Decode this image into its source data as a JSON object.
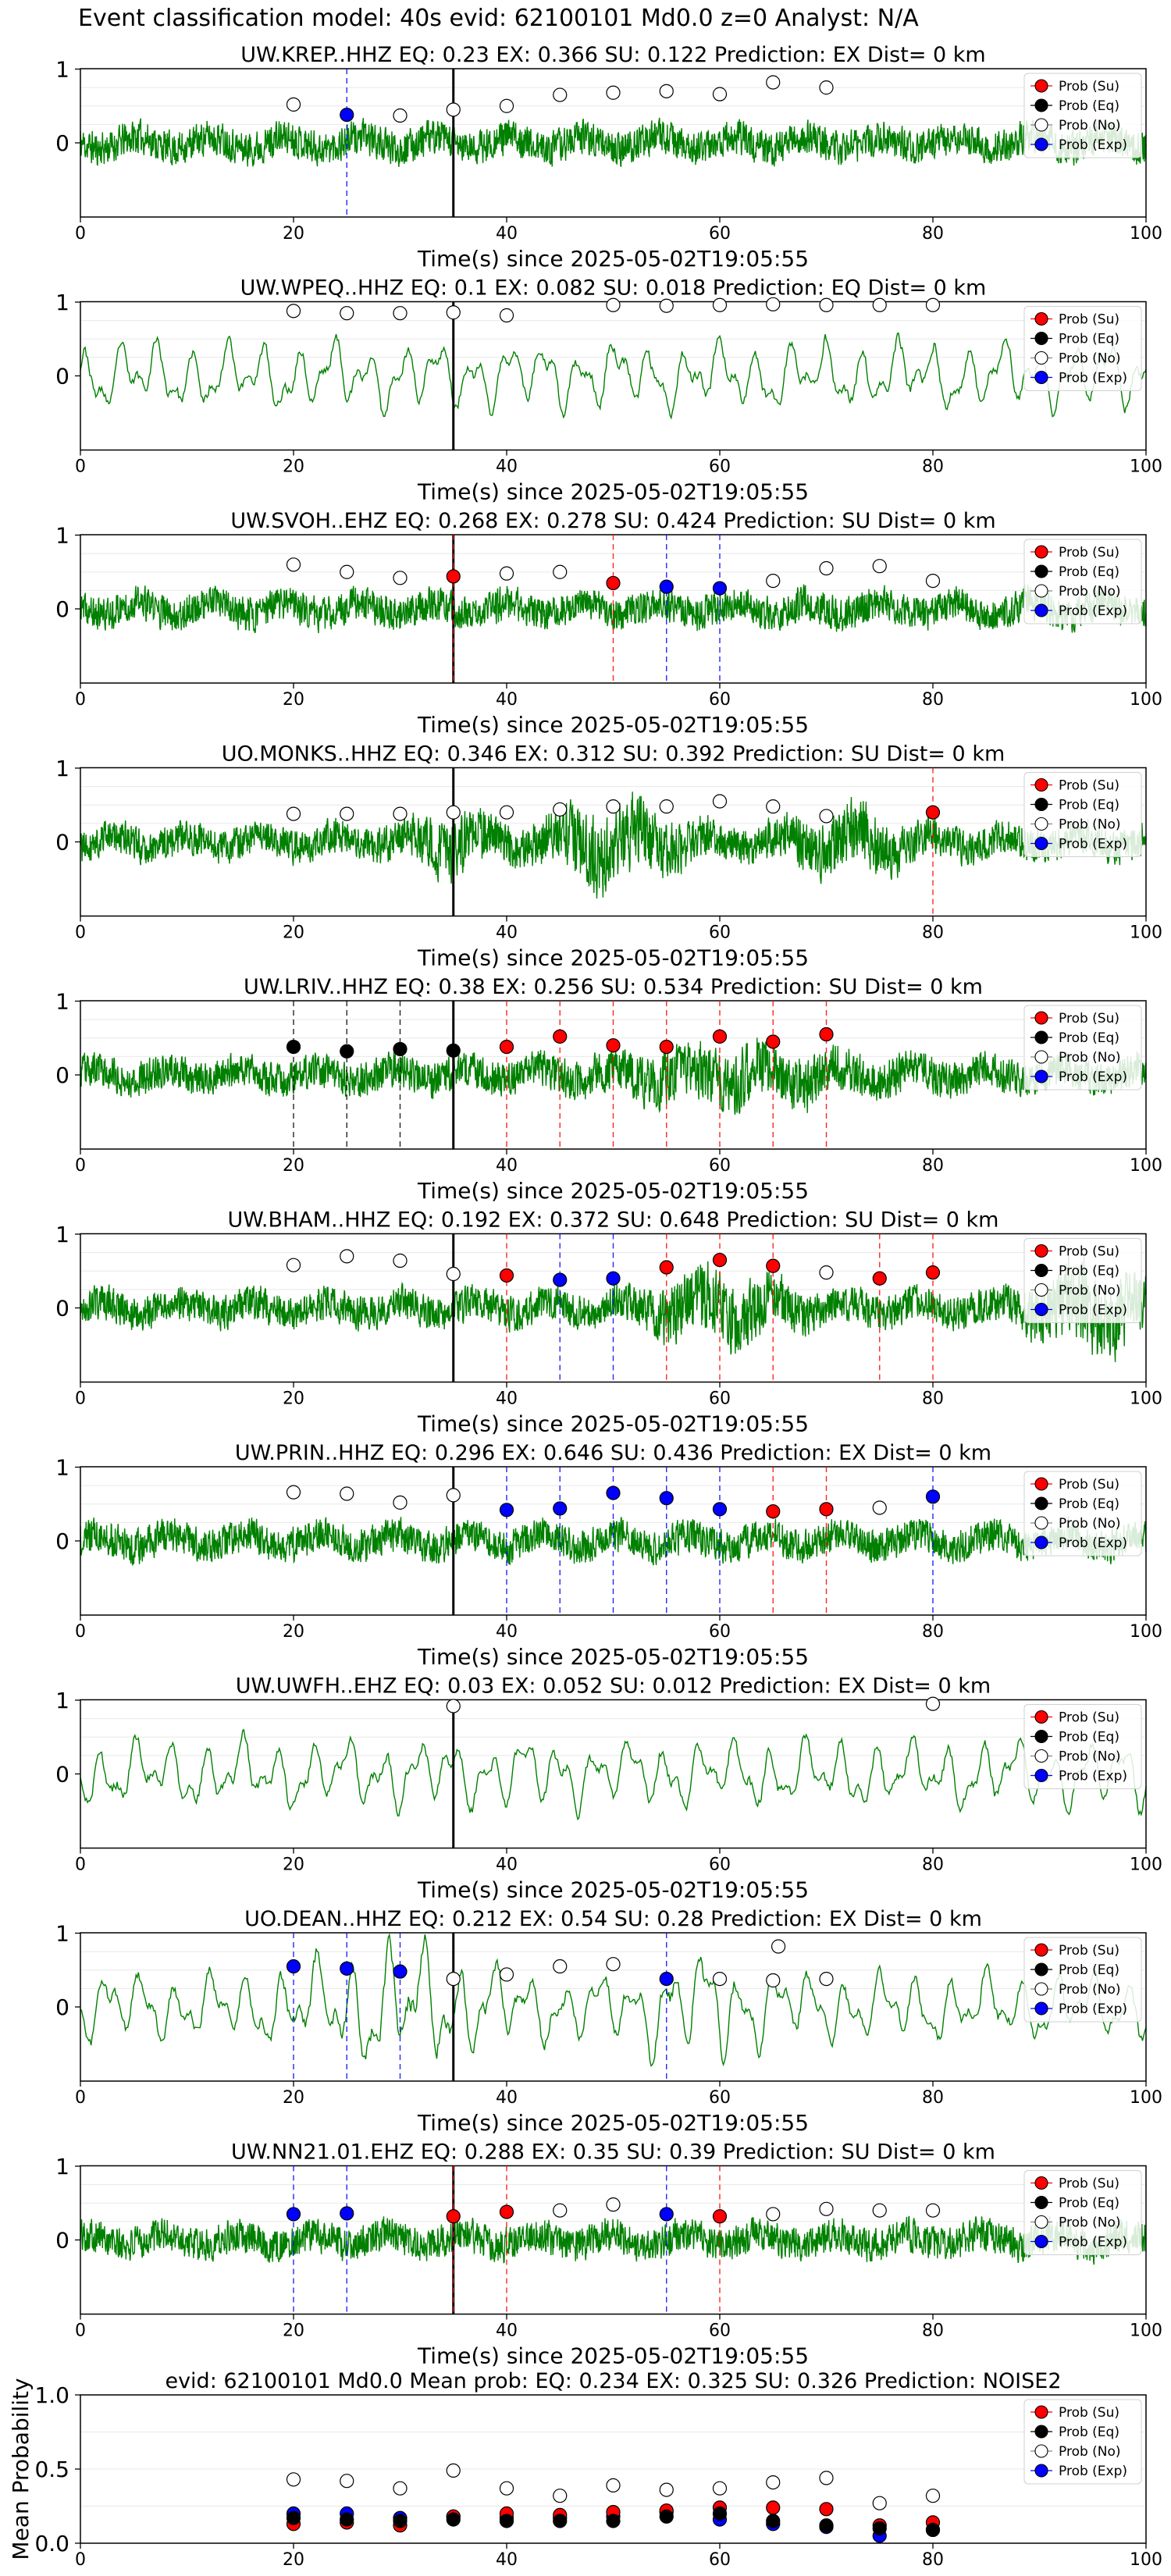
{
  "figure": {
    "suptitle": "Event classification model: 40s evid: 62100101 Md0.0 z=0 Analyst: N/A",
    "xlabel": "Time(s) since 2025-05-02T19:05:55",
    "legend": [
      "Prob (Su)",
      "Prob (Eq)",
      "Prob (No)",
      "Prob (Exp)"
    ],
    "colors": {
      "Su": "#ff0000",
      "Eq": "#000000",
      "No": "#ffffff",
      "Exp": "#0000ff",
      "waveform": "#008000",
      "su_line": "#ff0000",
      "exp_line": "#0000ff",
      "eq_line": "#000000",
      "no_line": "#aaaaaa"
    }
  },
  "chart_data": [
    {
      "type": "scatter",
      "title": "UW.KREP..HHZ   EQ: 0.23  EX: 0.366  SU: 0.122   Prediction: EX    Dist= 0 km",
      "xlim": [
        0,
        100
      ],
      "xticks": [
        0,
        20,
        40,
        60,
        80,
        100
      ],
      "yticks": [
        0,
        1
      ],
      "waveform": "noisy",
      "seed": 11,
      "points": [
        [
          20,
          0.52,
          "No"
        ],
        [
          25,
          0.38,
          "Exp"
        ],
        [
          30,
          0.37,
          "No"
        ],
        [
          35,
          0.45,
          "No"
        ],
        [
          40,
          0.5,
          "No"
        ],
        [
          45,
          0.65,
          "No"
        ],
        [
          50,
          0.68,
          "No"
        ],
        [
          55,
          0.7,
          "No"
        ],
        [
          60,
          0.66,
          "No"
        ],
        [
          65,
          0.82,
          "No"
        ],
        [
          70,
          0.75,
          "No"
        ]
      ]
    },
    {
      "type": "scatter",
      "title": "UW.WPEQ..HHZ   EQ: 0.1  EX: 0.082  SU: 0.018   Prediction: EQ    Dist= 0 km",
      "xlim": [
        0,
        100
      ],
      "xticks": [
        0,
        20,
        40,
        60,
        80,
        100
      ],
      "yticks": [
        0,
        1
      ],
      "waveform": "smooth",
      "seed": 23,
      "points": [
        [
          20,
          0.88,
          "No"
        ],
        [
          25,
          0.85,
          "No"
        ],
        [
          30,
          0.85,
          "No"
        ],
        [
          35,
          0.86,
          "No"
        ],
        [
          40,
          0.82,
          "No"
        ],
        [
          50,
          0.96,
          "No"
        ],
        [
          55,
          0.95,
          "No"
        ],
        [
          60,
          0.96,
          "No"
        ],
        [
          65,
          0.97,
          "No"
        ],
        [
          70,
          0.96,
          "No"
        ],
        [
          75,
          0.96,
          "No"
        ],
        [
          80,
          0.96,
          "No"
        ]
      ]
    },
    {
      "type": "scatter",
      "title": "UW.SVOH..EHZ   EQ: 0.268  EX: 0.278  SU: 0.424   Prediction: SU    Dist= 0 km",
      "xlim": [
        0,
        100
      ],
      "xticks": [
        0,
        20,
        40,
        60,
        80,
        100
      ],
      "yticks": [
        0,
        1
      ],
      "waveform": "noisy",
      "seed": 37,
      "points": [
        [
          20,
          0.6,
          "No"
        ],
        [
          25,
          0.5,
          "No"
        ],
        [
          30,
          0.42,
          "No"
        ],
        [
          35,
          0.44,
          "Su"
        ],
        [
          40,
          0.48,
          "No"
        ],
        [
          45,
          0.5,
          "No"
        ],
        [
          50,
          0.35,
          "Su"
        ],
        [
          55,
          0.3,
          "Exp"
        ],
        [
          60,
          0.28,
          "Exp"
        ],
        [
          65,
          0.38,
          "No"
        ],
        [
          70,
          0.55,
          "No"
        ],
        [
          75,
          0.58,
          "No"
        ],
        [
          80,
          0.38,
          "No"
        ]
      ]
    },
    {
      "type": "scatter",
      "title": "UO.MONKS..HHZ   EQ: 0.346  EX: 0.312  SU: 0.392   Prediction: SU    Dist= 0 km",
      "xlim": [
        0,
        100
      ],
      "xticks": [
        0,
        20,
        40,
        60,
        80,
        100
      ],
      "yticks": [
        0,
        1
      ],
      "waveform": "noisy",
      "seed": 41,
      "points": [
        [
          20,
          0.38,
          "No"
        ],
        [
          25,
          0.38,
          "No"
        ],
        [
          30,
          0.38,
          "No"
        ],
        [
          35,
          0.4,
          "No"
        ],
        [
          40,
          0.4,
          "No"
        ],
        [
          45,
          0.44,
          "No"
        ],
        [
          50,
          0.48,
          "No"
        ],
        [
          55,
          0.48,
          "No"
        ],
        [
          60,
          0.55,
          "No"
        ],
        [
          65,
          0.48,
          "No"
        ],
        [
          70,
          0.35,
          "No"
        ],
        [
          80,
          0.4,
          "Su"
        ]
      ]
    },
    {
      "type": "scatter",
      "title": "UW.LRIV..HHZ   EQ: 0.38  EX: 0.256  SU: 0.534   Prediction: SU    Dist= 0 km",
      "xlim": [
        0,
        100
      ],
      "xticks": [
        0,
        20,
        40,
        60,
        80,
        100
      ],
      "yticks": [
        0,
        1
      ],
      "waveform": "noisy",
      "seed": 53,
      "points": [
        [
          20,
          0.38,
          "Eq"
        ],
        [
          25,
          0.32,
          "Eq"
        ],
        [
          30,
          0.35,
          "Eq"
        ],
        [
          35,
          0.33,
          "Eq"
        ],
        [
          40,
          0.38,
          "Su"
        ],
        [
          45,
          0.52,
          "Su"
        ],
        [
          50,
          0.4,
          "Su"
        ],
        [
          55,
          0.38,
          "Su"
        ],
        [
          60,
          0.52,
          "Su"
        ],
        [
          65,
          0.45,
          "Su"
        ],
        [
          70,
          0.55,
          "Su"
        ]
      ]
    },
    {
      "type": "scatter",
      "title": "UW.BHAM..HHZ   EQ: 0.192  EX: 0.372  SU: 0.648   Prediction: SU    Dist= 0 km",
      "xlim": [
        0,
        100
      ],
      "xticks": [
        0,
        20,
        40,
        60,
        80,
        100
      ],
      "yticks": [
        0,
        1
      ],
      "waveform": "noisy",
      "seed": 67,
      "points": [
        [
          20,
          0.58,
          "No"
        ],
        [
          25,
          0.7,
          "No"
        ],
        [
          30,
          0.64,
          "No"
        ],
        [
          35,
          0.46,
          "No"
        ],
        [
          40,
          0.44,
          "Su"
        ],
        [
          45,
          0.38,
          "Exp"
        ],
        [
          50,
          0.4,
          "Exp"
        ],
        [
          55,
          0.55,
          "Su"
        ],
        [
          60,
          0.65,
          "Su"
        ],
        [
          65,
          0.57,
          "Su"
        ],
        [
          70,
          0.48,
          "No"
        ],
        [
          75,
          0.4,
          "Su"
        ],
        [
          80,
          0.48,
          "Su"
        ]
      ]
    },
    {
      "type": "scatter",
      "title": "UW.PRIN..HHZ   EQ: 0.296  EX: 0.646  SU: 0.436   Prediction: EX    Dist= 0 km",
      "xlim": [
        0,
        100
      ],
      "xticks": [
        0,
        20,
        40,
        60,
        80,
        100
      ],
      "yticks": [
        0,
        1
      ],
      "waveform": "noisy",
      "seed": 79,
      "points": [
        [
          20,
          0.66,
          "No"
        ],
        [
          25,
          0.64,
          "No"
        ],
        [
          30,
          0.52,
          "No"
        ],
        [
          35,
          0.62,
          "No"
        ],
        [
          40,
          0.42,
          "Exp"
        ],
        [
          45,
          0.44,
          "Exp"
        ],
        [
          50,
          0.65,
          "Exp"
        ],
        [
          55,
          0.58,
          "Exp"
        ],
        [
          60,
          0.43,
          "Exp"
        ],
        [
          65,
          0.4,
          "Su"
        ],
        [
          70,
          0.43,
          "Su"
        ],
        [
          75,
          0.45,
          "No"
        ],
        [
          80,
          0.6,
          "Exp"
        ]
      ]
    },
    {
      "type": "scatter",
      "title": "UW.UWFH..EHZ   EQ: 0.03  EX: 0.052  SU: 0.012   Prediction: EX    Dist= 0 km",
      "xlim": [
        0,
        100
      ],
      "xticks": [
        0,
        20,
        40,
        60,
        80,
        100
      ],
      "yticks": [
        0,
        1
      ],
      "waveform": "smooth",
      "seed": 83,
      "points": [
        [
          35,
          0.92,
          "No"
        ],
        [
          80,
          0.95,
          "No"
        ]
      ]
    },
    {
      "type": "scatter",
      "title": "UO.DEAN..HHZ   EQ: 0.212  EX: 0.54  SU: 0.28   Prediction: EX    Dist= 0 km",
      "xlim": [
        0,
        100
      ],
      "xticks": [
        0,
        20,
        40,
        60,
        80,
        100
      ],
      "yticks": [
        0,
        1
      ],
      "waveform": "smooth",
      "seed": 97,
      "points": [
        [
          20,
          0.55,
          "Exp"
        ],
        [
          25,
          0.52,
          "Exp"
        ],
        [
          30,
          0.48,
          "Exp"
        ],
        [
          35,
          0.38,
          "No"
        ],
        [
          40,
          0.44,
          "No"
        ],
        [
          45,
          0.55,
          "No"
        ],
        [
          50,
          0.58,
          "No"
        ],
        [
          55,
          0.38,
          "Exp"
        ],
        [
          60,
          0.38,
          "No"
        ],
        [
          65,
          0.36,
          "No"
        ],
        [
          65.5,
          0.82,
          "No"
        ],
        [
          70,
          0.38,
          "No"
        ]
      ]
    },
    {
      "type": "scatter",
      "title": "UW.NN21.01.EHZ   EQ: 0.288  EX: 0.35  SU: 0.39   Prediction: SU    Dist= 0 km",
      "xlim": [
        0,
        100
      ],
      "xticks": [
        0,
        20,
        40,
        60,
        80,
        100
      ],
      "yticks": [
        0,
        1
      ],
      "waveform": "noisy",
      "seed": 101,
      "points": [
        [
          20,
          0.35,
          "Exp"
        ],
        [
          25,
          0.36,
          "Exp"
        ],
        [
          35,
          0.32,
          "Su"
        ],
        [
          40,
          0.38,
          "Su"
        ],
        [
          45,
          0.4,
          "No"
        ],
        [
          50,
          0.48,
          "No"
        ],
        [
          55,
          0.35,
          "Exp"
        ],
        [
          60,
          0.32,
          "Su"
        ],
        [
          65,
          0.35,
          "No"
        ],
        [
          70,
          0.42,
          "No"
        ],
        [
          75,
          0.4,
          "No"
        ],
        [
          80,
          0.4,
          "No"
        ]
      ]
    },
    {
      "type": "scatter",
      "title": "evid: 62100101  Md0.0   Mean prob:   EQ: 0.234  EX: 0.325  SU: 0.326   Prediction: NOISE2",
      "ylabel": "Mean Probability",
      "mean_panel": true,
      "xlim": [
        0,
        100
      ],
      "ylim": [
        0,
        1
      ],
      "xticks": [
        0,
        20,
        40,
        60,
        80,
        100
      ],
      "ytick_labels": [
        "0.0",
        "0.5",
        "1.0"
      ],
      "yticks": [
        0,
        0.5,
        1
      ],
      "series": [
        {
          "name": "Prob (No)",
          "cls": "No",
          "x": [
            20,
            25,
            30,
            35,
            40,
            45,
            50,
            55,
            60,
            65,
            70,
            75,
            80
          ],
          "values": [
            0.43,
            0.42,
            0.37,
            0.49,
            0.37,
            0.32,
            0.39,
            0.36,
            0.37,
            0.41,
            0.44,
            0.27,
            0.32
          ]
        },
        {
          "name": "Prob (Exp)",
          "cls": "Exp",
          "x": [
            20,
            25,
            30,
            35,
            40,
            45,
            50,
            55,
            60,
            65,
            70,
            75,
            80
          ],
          "values": [
            0.2,
            0.2,
            0.17,
            0.18,
            0.17,
            0.17,
            0.18,
            0.21,
            0.16,
            0.13,
            0.11,
            0.05,
            0.09
          ]
        },
        {
          "name": "Prob (Su)",
          "cls": "Su",
          "x": [
            20,
            25,
            30,
            35,
            40,
            45,
            50,
            55,
            60,
            65,
            70,
            75,
            80
          ],
          "values": [
            0.13,
            0.14,
            0.12,
            0.18,
            0.2,
            0.19,
            0.21,
            0.22,
            0.24,
            0.24,
            0.23,
            0.12,
            0.14
          ]
        },
        {
          "name": "Prob (Eq)",
          "cls": "Eq",
          "x": [
            20,
            25,
            30,
            35,
            40,
            45,
            50,
            55,
            60,
            65,
            70,
            75,
            80
          ],
          "values": [
            0.17,
            0.16,
            0.15,
            0.16,
            0.15,
            0.15,
            0.15,
            0.18,
            0.2,
            0.15,
            0.12,
            0.1,
            0.09
          ]
        }
      ]
    }
  ]
}
